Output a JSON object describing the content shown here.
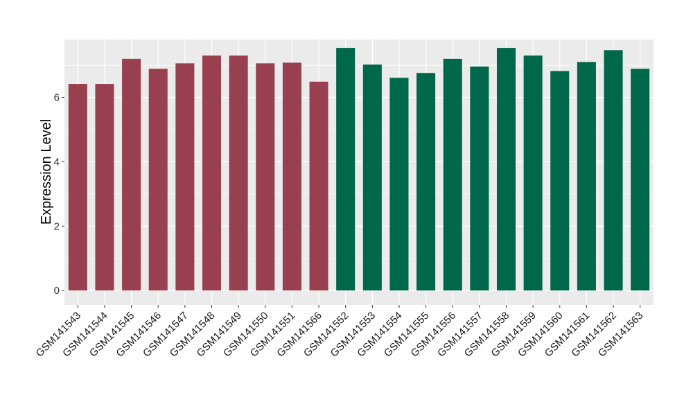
{
  "chart_data": {
    "type": "bar",
    "title": "",
    "xlabel": "",
    "ylabel": "Expression Level",
    "ylim": [
      -0.45,
      7.8
    ],
    "yticks": [
      0,
      2,
      4,
      6
    ],
    "grid": true,
    "colors": {
      "panel_background": "#EBEBEB",
      "grid_major": "#FFFFFF",
      "group_1": "#98404F",
      "group_2": "#00684A"
    },
    "categories": [
      "GSM141543",
      "GSM141544",
      "GSM141545",
      "GSM141546",
      "GSM141547",
      "GSM141548",
      "GSM141549",
      "GSM141550",
      "GSM141551",
      "GSM141566",
      "GSM141552",
      "GSM141553",
      "GSM141554",
      "GSM141555",
      "GSM141556",
      "GSM141557",
      "GSM141558",
      "GSM141559",
      "GSM141560",
      "GSM141561",
      "GSM141562",
      "GSM141563"
    ],
    "values": [
      6.42,
      6.42,
      7.2,
      6.89,
      7.06,
      7.3,
      7.3,
      7.06,
      7.08,
      6.49,
      7.54,
      7.02,
      6.61,
      6.76,
      7.2,
      6.96,
      7.54,
      7.3,
      6.82,
      7.1,
      7.47,
      6.89
    ],
    "bar_groups": [
      1,
      1,
      1,
      1,
      1,
      1,
      1,
      1,
      1,
      1,
      2,
      2,
      2,
      2,
      2,
      2,
      2,
      2,
      2,
      2,
      2,
      2
    ]
  }
}
